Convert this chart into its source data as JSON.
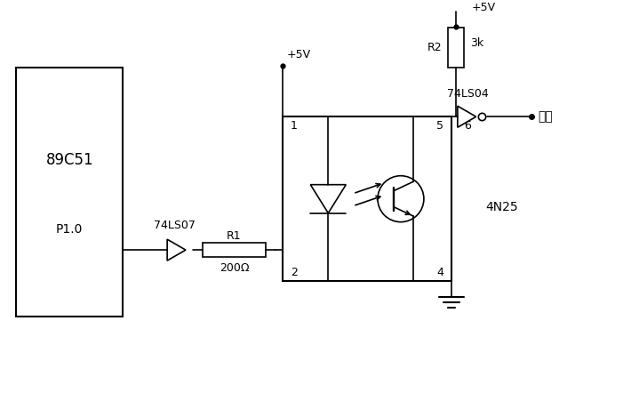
{
  "bg_color": "#ffffff",
  "line_color": "#000000",
  "fig_width": 7.19,
  "fig_height": 4.51,
  "ic1_label": "89C51",
  "ic1_sublabel": "P1.0",
  "ic2_label": "74LS07",
  "ic3_label": "74LS04",
  "r1_label": "R1",
  "r1_value": "200Ω",
  "r2_label": "R2",
  "r2_value": "3k",
  "coupler_label": "4N25",
  "vcc_label": "+5V",
  "output_label": "输出",
  "pin1": "1",
  "pin2": "2",
  "pin4": "4",
  "pin5": "5",
  "pin6": "6"
}
